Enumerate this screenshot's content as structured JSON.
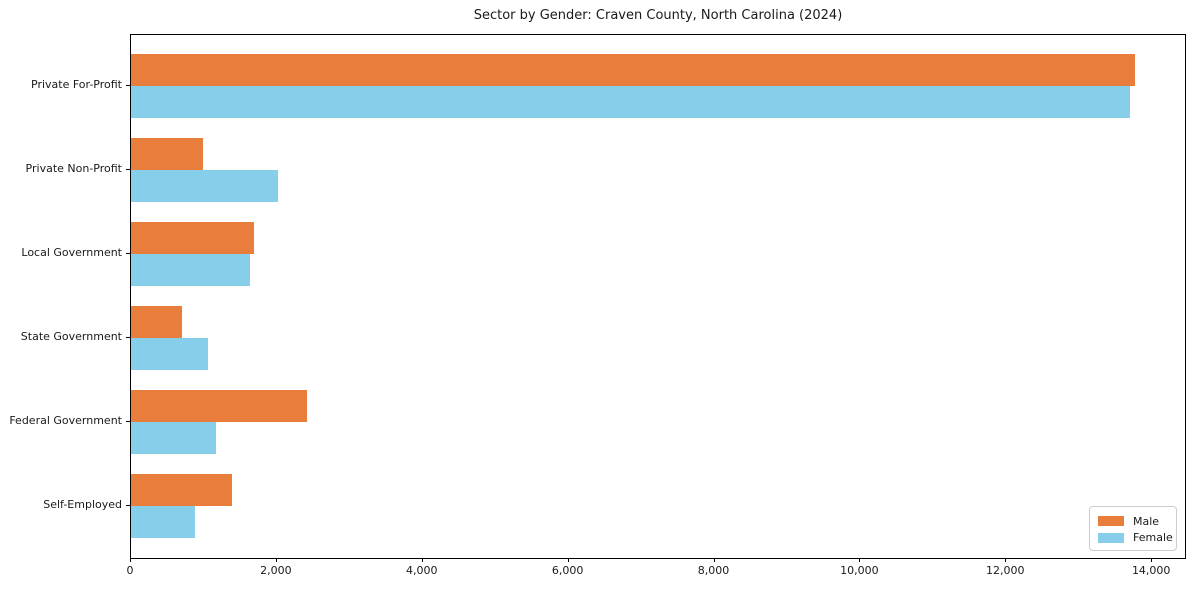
{
  "chart_data": {
    "type": "bar",
    "orientation": "horizontal",
    "title": "Sector by Gender: Craven County, North Carolina (2024)",
    "categories": [
      "Private For-Profit",
      "Private Non-Profit",
      "Local Government",
      "State Government",
      "Federal Government",
      "Self-Employed"
    ],
    "series": [
      {
        "name": "Male",
        "color": "#e87d3c",
        "values": [
          13770,
          980,
          1690,
          700,
          2410,
          1390
        ]
      },
      {
        "name": "Female",
        "color": "#87ceeb",
        "values": [
          13700,
          2010,
          1630,
          1060,
          1160,
          870
        ]
      }
    ],
    "xlabel": "",
    "ylabel": "",
    "xlim": [
      0,
      14450
    ],
    "xticks": [
      0,
      2000,
      4000,
      6000,
      8000,
      10000,
      12000,
      14000
    ],
    "xtick_labels": [
      "0",
      "2,000",
      "4,000",
      "6,000",
      "8,000",
      "10,000",
      "12,000",
      "14,000"
    ],
    "grid": false,
    "legend_position": "lower right"
  }
}
